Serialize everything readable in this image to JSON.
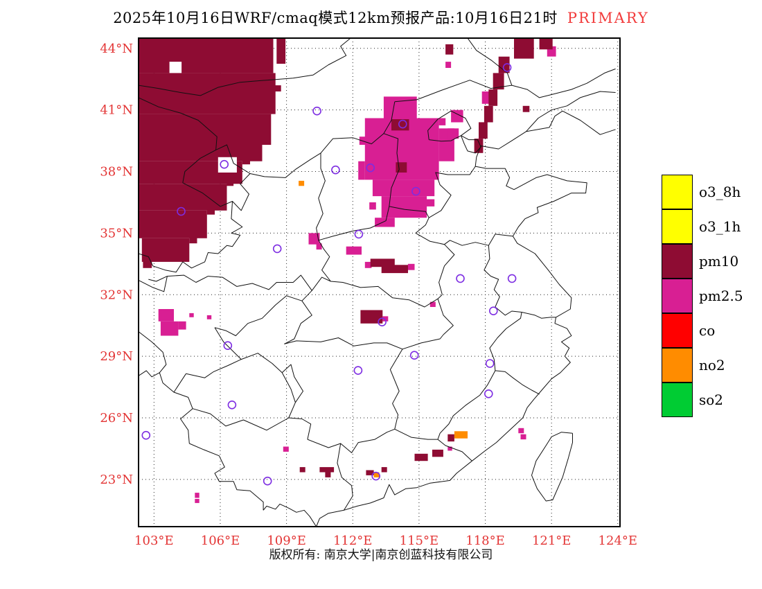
{
  "title": {
    "main": "2025年10月16日WRF/cmaq模式12km预报产品:10月16日21时",
    "badge": "PRIMARY",
    "badge_color": "#f23c3c"
  },
  "legend": {
    "items": [
      {
        "label": "o3_8h",
        "color": "#ffff00"
      },
      {
        "label": "o3_1h",
        "color": "#ffff00"
      },
      {
        "label": "pm10",
        "color": "#8e0c33"
      },
      {
        "label": "pm2.5",
        "color": "#d81f93"
      },
      {
        "label": "co",
        "color": "#ff0000"
      },
      {
        "label": "no2",
        "color": "#ff8c00"
      },
      {
        "label": "so2",
        "color": "#00cc33"
      }
    ]
  },
  "footer": {
    "copyright": "版权所有: 南京大学|南京创蓝科技有限公司"
  },
  "chart_data": {
    "type": "map",
    "subject": "WRF/CMAQ 12km primary-pollutant forecast, eastern China",
    "lon_range": [
      102.3,
      124.1
    ],
    "lat_range": [
      20.7,
      44.5
    ],
    "grid_lons": [
      103,
      106,
      109,
      112,
      115,
      118,
      121,
      124
    ],
    "grid_lats": [
      23,
      26,
      29,
      32,
      35,
      38,
      41,
      44
    ],
    "lon_labels": [
      "103°E",
      "106°E",
      "109°E",
      "112°E",
      "115°E",
      "118°E",
      "121°E",
      "124°E"
    ],
    "lat_labels": [
      "23°N",
      "26°N",
      "29°N",
      "32°N",
      "35°N",
      "38°N",
      "41°N",
      "44°N"
    ],
    "axis_label_color": "#e33535",
    "colors": {
      "pm10": "#8e0c33",
      "pm25": "#d81f93",
      "no2": "#ff8c00",
      "co": "#ff0000",
      "o3": "#ffff00",
      "so2": "#00cc33",
      "station": "#7d2de2"
    },
    "patches": [
      {
        "p": "pm10",
        "b": [
          102.3,
          42.8,
          108.4,
          44.5
        ]
      },
      {
        "p": "pm10",
        "b": [
          102.3,
          40.8,
          108.5,
          42.8
        ]
      },
      {
        "p": "pm10",
        "b": [
          102.3,
          39.3,
          108.3,
          40.8
        ]
      },
      {
        "p": "pm10",
        "b": [
          102.3,
          38.5,
          107.9,
          39.3
        ]
      },
      {
        "p": "pm10",
        "b": [
          102.3,
          37.4,
          107.0,
          38.5
        ]
      },
      {
        "p": "pm10",
        "b": [
          102.3,
          36.1,
          106.3,
          37.4
        ]
      },
      {
        "p": "pm10",
        "b": [
          102.3,
          34.75,
          105.4,
          36.1
        ]
      },
      {
        "p": "pm10",
        "b": [
          102.45,
          33.6,
          104.6,
          34.75
        ]
      },
      {
        "p": "pm10",
        "b": [
          108.55,
          43.25,
          108.95,
          44.5
        ]
      },
      {
        "p": "pm10",
        "b": [
          108.45,
          41.9,
          108.75,
          42.2
        ]
      },
      {
        "p": "pm10",
        "b": [
          107.0,
          38.35,
          107.35,
          38.6
        ]
      },
      {
        "p": "pm10",
        "b": [
          106.3,
          37.3,
          106.6,
          37.55
        ]
      },
      {
        "p": "pm10",
        "b": [
          105.4,
          35.9,
          105.75,
          36.15
        ]
      },
      {
        "p": "pm10",
        "b": [
          104.6,
          34.5,
          104.95,
          34.8
        ]
      },
      {
        "p": "pm10",
        "b": [
          102.5,
          33.3,
          102.9,
          33.65
        ]
      },
      {
        "p": "pm10",
        "b": [
          113.75,
          40.0,
          114.55,
          40.55
        ]
      },
      {
        "p": "pm10",
        "b": [
          113.95,
          37.95,
          114.45,
          38.45
        ]
      },
      {
        "p": "pm10",
        "b": [
          117.5,
          38.9,
          117.9,
          39.6
        ]
      },
      {
        "p": "pm10",
        "b": [
          117.7,
          39.6,
          118.1,
          40.4
        ]
      },
      {
        "p": "pm10",
        "b": [
          117.95,
          40.4,
          118.35,
          41.2
        ]
      },
      {
        "p": "pm10",
        "b": [
          118.15,
          41.2,
          118.55,
          42.0
        ]
      },
      {
        "p": "pm10",
        "b": [
          118.35,
          42.0,
          118.85,
          42.8
        ]
      },
      {
        "p": "pm10",
        "b": [
          118.6,
          42.8,
          119.1,
          43.6
        ]
      },
      {
        "p": "pm10",
        "b": [
          119.3,
          43.5,
          120.2,
          44.5
        ]
      },
      {
        "p": "pm10",
        "b": [
          120.45,
          43.95,
          121.05,
          44.5
        ]
      },
      {
        "p": "pm10",
        "b": [
          119.7,
          40.9,
          120.0,
          41.2
        ]
      },
      {
        "p": "pm10",
        "b": [
          116.2,
          43.7,
          116.55,
          44.2
        ]
      },
      {
        "p": "pm10",
        "b": [
          112.8,
          33.35,
          113.9,
          33.75
        ]
      },
      {
        "p": "pm10",
        "b": [
          113.3,
          33.05,
          114.5,
          33.45
        ]
      },
      {
        "p": "pm10",
        "b": [
          112.35,
          30.6,
          113.35,
          31.25
        ]
      },
      {
        "p": "pm10",
        "b": [
          114.8,
          23.9,
          115.4,
          24.25
        ]
      },
      {
        "p": "pm10",
        "b": [
          115.6,
          24.1,
          116.1,
          24.45
        ]
      },
      {
        "p": "pm10",
        "b": [
          116.3,
          24.85,
          116.6,
          25.2
        ]
      },
      {
        "p": "pm10",
        "b": [
          110.5,
          23.35,
          111.15,
          23.6
        ]
      },
      {
        "p": "pm10",
        "b": [
          110.75,
          23.1,
          111.0,
          23.35
        ]
      },
      {
        "p": "pm10",
        "b": [
          112.6,
          23.2,
          112.95,
          23.45
        ]
      },
      {
        "p": "pm10",
        "b": [
          113.3,
          23.35,
          113.55,
          23.6
        ]
      },
      {
        "p": "pm10",
        "b": [
          109.6,
          23.35,
          109.85,
          23.6
        ]
      },
      {
        "p": "pm25",
        "b": [
          113.4,
          40.6,
          114.9,
          41.65
        ]
      },
      {
        "p": "pm25",
        "b": [
          112.55,
          37.6,
          115.9,
          40.6
        ]
      },
      {
        "p": "pm25",
        "b": [
          115.9,
          38.5,
          116.6,
          40.1
        ]
      },
      {
        "p": "pm25",
        "b": [
          112.25,
          37.6,
          112.55,
          38.5
        ]
      },
      {
        "p": "pm25",
        "b": [
          112.9,
          36.8,
          115.7,
          37.6
        ]
      },
      {
        "p": "pm25",
        "b": [
          113.3,
          35.75,
          115.35,
          36.8
        ]
      },
      {
        "p": "pm25",
        "b": [
          113.0,
          35.3,
          113.9,
          35.75
        ]
      },
      {
        "p": "pm25",
        "b": [
          116.45,
          40.4,
          117.0,
          41.0
        ]
      },
      {
        "p": "pm25",
        "b": [
          116.3,
          39.6,
          116.8,
          40.1
        ]
      },
      {
        "p": "pm25",
        "b": [
          117.85,
          41.3,
          118.2,
          41.9
        ]
      },
      {
        "p": "pm25",
        "b": [
          120.8,
          43.6,
          121.2,
          44.1
        ]
      },
      {
        "p": "pm25",
        "b": [
          116.2,
          43.05,
          116.45,
          43.35
        ]
      },
      {
        "p": "pm25",
        "b": [
          112.3,
          39.3,
          112.6,
          39.7
        ]
      },
      {
        "p": "pm25",
        "b": [
          115.9,
          40.25,
          116.2,
          40.6
        ]
      },
      {
        "p": "pm25",
        "b": [
          112.75,
          36.15,
          113.05,
          36.5
        ]
      },
      {
        "p": "pm25",
        "b": [
          115.35,
          36.3,
          115.7,
          36.65
        ]
      },
      {
        "p": "pm25",
        "b": [
          110.0,
          34.45,
          110.5,
          35.0
        ]
      },
      {
        "p": "pm25",
        "b": [
          110.35,
          34.2,
          110.6,
          34.5
        ]
      },
      {
        "p": "pm25",
        "b": [
          111.7,
          33.95,
          112.4,
          34.35
        ]
      },
      {
        "p": "pm25",
        "b": [
          112.55,
          33.3,
          112.85,
          33.6
        ]
      },
      {
        "p": "pm25",
        "b": [
          114.5,
          33.2,
          114.8,
          33.5
        ]
      },
      {
        "p": "pm25",
        "b": [
          115.5,
          31.4,
          115.75,
          31.65
        ]
      },
      {
        "p": "pm25",
        "b": [
          113.35,
          30.7,
          113.6,
          30.95
        ]
      },
      {
        "p": "pm25",
        "b": [
          103.2,
          30.7,
          103.9,
          31.3
        ]
      },
      {
        "p": "pm25",
        "b": [
          103.3,
          30.0,
          104.1,
          30.7
        ]
      },
      {
        "p": "pm25",
        "b": [
          104.1,
          30.3,
          104.45,
          30.7
        ]
      },
      {
        "p": "pm25",
        "b": [
          104.6,
          30.9,
          104.8,
          31.1
        ]
      },
      {
        "p": "pm25",
        "b": [
          105.4,
          30.8,
          105.6,
          31.0
        ]
      },
      {
        "p": "pm25",
        "b": [
          119.5,
          25.25,
          119.75,
          25.5
        ]
      },
      {
        "p": "pm25",
        "b": [
          119.6,
          24.95,
          119.85,
          25.2
        ]
      },
      {
        "p": "pm25",
        "b": [
          104.85,
          22.1,
          105.05,
          22.35
        ]
      },
      {
        "p": "pm25",
        "b": [
          104.85,
          21.85,
          105.05,
          22.05
        ]
      },
      {
        "p": "pm25",
        "b": [
          108.85,
          24.35,
          109.1,
          24.6
        ]
      },
      {
        "p": "pm25",
        "b": [
          116.3,
          24.4,
          116.5,
          24.6
        ]
      },
      {
        "p": "no2",
        "b": [
          109.55,
          37.3,
          109.8,
          37.55
        ]
      },
      {
        "p": "no2",
        "b": [
          116.6,
          25.0,
          117.2,
          25.35
        ]
      },
      {
        "p": "no2",
        "b": [
          112.95,
          23.1,
          113.2,
          23.35
        ]
      }
    ],
    "holes": [
      [
        105.9,
        37.95,
        106.75,
        38.7
      ],
      [
        103.7,
        42.8,
        104.25,
        43.35
      ]
    ],
    "stations": [
      [
        110.38,
        40.95
      ],
      [
        114.26,
        40.31
      ],
      [
        106.18,
        38.35
      ],
      [
        112.8,
        38.18
      ],
      [
        111.22,
        38.08
      ],
      [
        104.23,
        36.06
      ],
      [
        114.86,
        37.04
      ],
      [
        108.58,
        34.24
      ],
      [
        112.27,
        34.95
      ],
      [
        116.87,
        32.79
      ],
      [
        119.21,
        32.79
      ],
      [
        118.37,
        31.21
      ],
      [
        113.33,
        30.67
      ],
      [
        106.34,
        29.52
      ],
      [
        114.79,
        29.05
      ],
      [
        112.24,
        28.31
      ],
      [
        118.21,
        28.65
      ],
      [
        106.53,
        26.63
      ],
      [
        118.15,
        27.17
      ],
      [
        102.64,
        25.15
      ],
      [
        108.14,
        22.92
      ],
      [
        113.05,
        23.16
      ],
      [
        118.99,
        43.07
      ]
    ]
  }
}
